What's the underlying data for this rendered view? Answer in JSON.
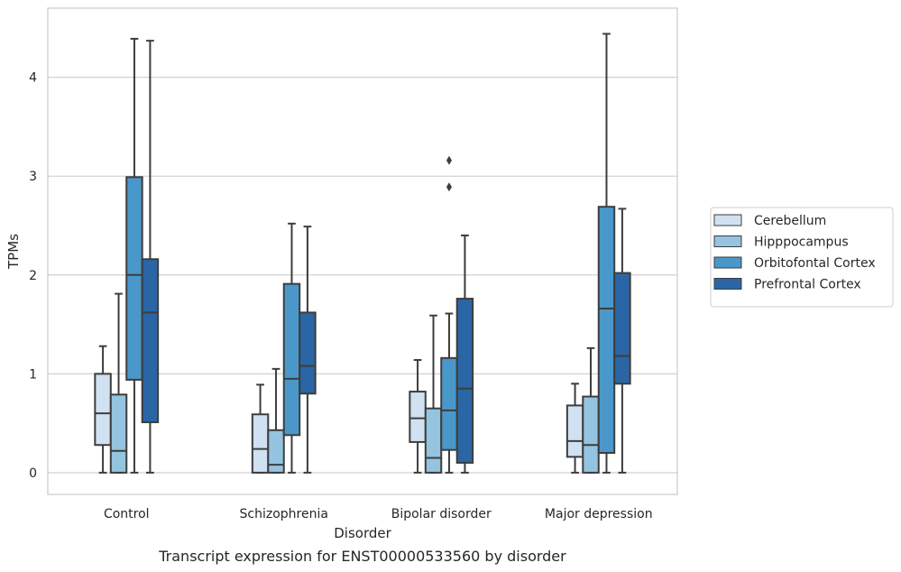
{
  "chart_data": {
    "type": "boxplot",
    "xlabel": "Disorder",
    "ylabel": "TPMs",
    "caption": "Transcript expression for ENST00000533560 by disorder",
    "ylim": [
      -0.22,
      4.7
    ],
    "yticks": [
      0,
      1,
      2,
      3,
      4
    ],
    "grid": "horizontal",
    "legend_position": "right",
    "categories": [
      "Control",
      "Schizophrenia",
      "Bipolar disorder",
      "Major depression"
    ],
    "series": [
      {
        "name": "Cerebellum",
        "color": "#d0e1f2",
        "boxes": [
          {
            "whislo": 0,
            "q1": 0.28,
            "med": 0.6,
            "q3": 1.0,
            "whishi": 1.28,
            "fliers": []
          },
          {
            "whislo": 0,
            "q1": 0,
            "med": 0.24,
            "q3": 0.59,
            "whishi": 0.89,
            "fliers": []
          },
          {
            "whislo": 0,
            "q1": 0.31,
            "med": 0.55,
            "q3": 0.82,
            "whishi": 1.14,
            "fliers": []
          },
          {
            "whislo": 0,
            "q1": 0.16,
            "med": 0.32,
            "q3": 0.68,
            "whishi": 0.9,
            "fliers": []
          }
        ]
      },
      {
        "name": "Hipppocampus",
        "color": "#94c4df",
        "boxes": [
          {
            "whislo": 0,
            "q1": 0,
            "med": 0.22,
            "q3": 0.79,
            "whishi": 1.81,
            "fliers": []
          },
          {
            "whislo": 0,
            "q1": 0,
            "med": 0.08,
            "q3": 0.43,
            "whishi": 1.05,
            "fliers": []
          },
          {
            "whislo": 0,
            "q1": 0,
            "med": 0.15,
            "q3": 0.65,
            "whishi": 1.59,
            "fliers": []
          },
          {
            "whislo": 0,
            "q1": 0,
            "med": 0.28,
            "q3": 0.77,
            "whishi": 1.26,
            "fliers": []
          }
        ]
      },
      {
        "name": "Orbitofontal Cortex",
        "color": "#4a98c9",
        "boxes": [
          {
            "whislo": 0,
            "q1": 0.94,
            "med": 2.0,
            "q3": 2.99,
            "whishi": 4.39,
            "fliers": []
          },
          {
            "whislo": 0,
            "q1": 0.38,
            "med": 0.95,
            "q3": 1.91,
            "whishi": 2.52,
            "fliers": []
          },
          {
            "whislo": 0,
            "q1": 0.23,
            "med": 0.63,
            "q3": 1.16,
            "whishi": 1.61,
            "fliers": [
              2.89,
              3.16
            ]
          },
          {
            "whislo": 0,
            "q1": 0.2,
            "med": 1.66,
            "q3": 2.69,
            "whishi": 4.44,
            "fliers": []
          }
        ]
      },
      {
        "name": "Prefrontal Cortex",
        "color": "#2a66a6",
        "boxes": [
          {
            "whislo": 0,
            "q1": 0.51,
            "med": 1.62,
            "q3": 2.16,
            "whishi": 4.37,
            "fliers": []
          },
          {
            "whislo": 0,
            "q1": 0.8,
            "med": 1.08,
            "q3": 1.62,
            "whishi": 2.49,
            "fliers": []
          },
          {
            "whislo": 0,
            "q1": 0.1,
            "med": 0.85,
            "q3": 1.76,
            "whishi": 2.4,
            "fliers": []
          },
          {
            "whislo": 0,
            "q1": 0.9,
            "med": 1.18,
            "q3": 2.02,
            "whishi": 2.67,
            "fliers": []
          }
        ]
      }
    ]
  }
}
